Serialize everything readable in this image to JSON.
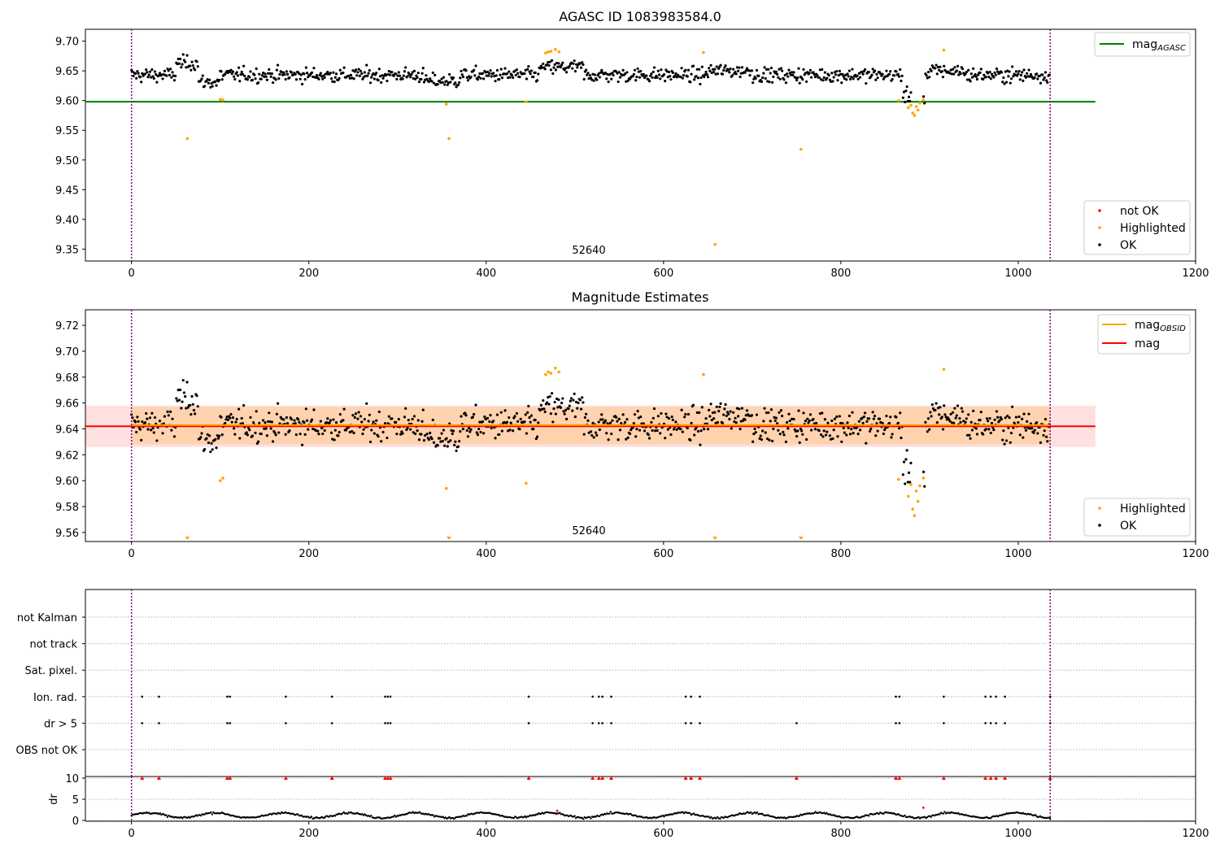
{
  "chart_data": [
    {
      "type": "scatter",
      "title": "AGASC ID 1083983584.0",
      "xlim": [
        -52,
        1200
      ],
      "ylim": [
        9.33,
        9.72
      ],
      "xticks": [
        "0",
        "200",
        "400",
        "600",
        "800",
        "1000",
        "1200"
      ],
      "yticks": [
        "9.35",
        "9.40",
        "9.45",
        "9.50",
        "9.55",
        "9.60",
        "9.65",
        "9.70"
      ],
      "annotation": "52640",
      "vlines": [
        0,
        1036
      ],
      "hline": {
        "value": 9.598,
        "xmax": 1087,
        "color": "#008000"
      },
      "legend_lines": [
        {
          "label": "mag",
          "sub": "AGASC",
          "color": "#008000"
        }
      ],
      "legend_points": [
        {
          "label": "not OK",
          "color": "#ff0000"
        },
        {
          "label": "Highlighted",
          "color": "#ffa500"
        },
        {
          "label": "OK",
          "color": "#000000"
        }
      ],
      "highlighted": [
        [
          63,
          9.536
        ],
        [
          100,
          9.602
        ],
        [
          103,
          9.601
        ],
        [
          355,
          9.594
        ],
        [
          358,
          9.536
        ],
        [
          445,
          9.598
        ],
        [
          467,
          9.68
        ],
        [
          470,
          9.682
        ],
        [
          473,
          9.683
        ],
        [
          478,
          9.686
        ],
        [
          482,
          9.682
        ],
        [
          645,
          9.681
        ],
        [
          658,
          9.358
        ],
        [
          755,
          9.518
        ],
        [
          865,
          9.6
        ],
        [
          876,
          9.588
        ],
        [
          879,
          9.592
        ],
        [
          881,
          9.579
        ],
        [
          883,
          9.575
        ],
        [
          885,
          9.59
        ],
        [
          887,
          9.584
        ],
        [
          889,
          9.596
        ],
        [
          893,
          9.601
        ],
        [
          916,
          9.685
        ]
      ]
    },
    {
      "type": "scatter",
      "title": "Magnitude Estimates",
      "xlim": [
        -52,
        1200
      ],
      "ylim": [
        9.553,
        9.732
      ],
      "xticks": [
        "0",
        "200",
        "400",
        "600",
        "800",
        "1000",
        "1200"
      ],
      "yticks": [
        "9.56",
        "9.58",
        "9.60",
        "9.62",
        "9.64",
        "9.66",
        "9.68",
        "9.70",
        "9.72"
      ],
      "annotation": "52640",
      "vlines": [
        0,
        1036
      ],
      "mag": 9.642,
      "mag_band": [
        9.626,
        9.658
      ],
      "mag_obsid": 9.643,
      "obsid_band": [
        9.628,
        9.657
      ],
      "legend_lines": [
        {
          "label": "mag",
          "sub": "OBSID",
          "color": "#ffa500"
        },
        {
          "label": "mag",
          "sub": "",
          "color": "#ff0000"
        }
      ],
      "legend_points": [
        {
          "label": "Highlighted",
          "color": "#ffa500"
        },
        {
          "label": "OK",
          "color": "#000000"
        }
      ],
      "highlighted": [
        [
          100,
          9.6
        ],
        [
          103,
          9.602
        ],
        [
          355,
          9.594
        ],
        [
          445,
          9.598
        ],
        [
          467,
          9.682
        ],
        [
          470,
          9.684
        ],
        [
          473,
          9.683
        ],
        [
          478,
          9.687
        ],
        [
          482,
          9.684
        ],
        [
          645,
          9.682
        ],
        [
          865,
          9.601
        ],
        [
          876,
          9.588
        ],
        [
          879,
          9.597
        ],
        [
          881,
          9.578
        ],
        [
          883,
          9.573
        ],
        [
          885,
          9.592
        ],
        [
          887,
          9.584
        ],
        [
          889,
          9.596
        ],
        [
          893,
          9.602
        ],
        [
          916,
          9.686
        ]
      ],
      "clipped_low": [
        63,
        358,
        658,
        755
      ]
    },
    {
      "type": "scatter",
      "xlim": [
        -52,
        1200
      ],
      "xticks": [
        "0",
        "200",
        "400",
        "600",
        "800",
        "1000",
        "1200"
      ],
      "categories": [
        "not Kalman",
        "not track",
        "Sat. pixel.",
        "Ion. rad.",
        "dr > 5",
        "OBS not OK"
      ],
      "vlines": [
        0,
        1036
      ],
      "flags": {
        "Ion. rad.": [
          12,
          31,
          108,
          111,
          174,
          226,
          286,
          289,
          292,
          448,
          520,
          527,
          531,
          541,
          625,
          631,
          641,
          862,
          866,
          916,
          963,
          969,
          975,
          985,
          1036
        ],
        "dr > 5": [
          12,
          31,
          108,
          111,
          174,
          226,
          286,
          289,
          292,
          448,
          520,
          527,
          531,
          541,
          625,
          631,
          641,
          750,
          862,
          866,
          916,
          963,
          969,
          975,
          985,
          1036
        ]
      }
    },
    {
      "type": "scatter",
      "xlim": [
        -52,
        1200
      ],
      "ylim": [
        0,
        10
      ],
      "ylabel": "dr",
      "xticks": [
        "0",
        "200",
        "400",
        "600",
        "800",
        "1000",
        "1200"
      ],
      "yticks": [
        "0",
        "5",
        "10"
      ],
      "vlines": [
        0,
        1036
      ],
      "red_markers": [
        12,
        31,
        108,
        111,
        174,
        226,
        286,
        289,
        292,
        448,
        520,
        527,
        531,
        541,
        625,
        631,
        641,
        750,
        862,
        866,
        916,
        963,
        969,
        975,
        985,
        1036
      ],
      "outliers": [
        [
          893,
          3.0
        ],
        [
          480,
          2.3
        ]
      ]
    }
  ]
}
